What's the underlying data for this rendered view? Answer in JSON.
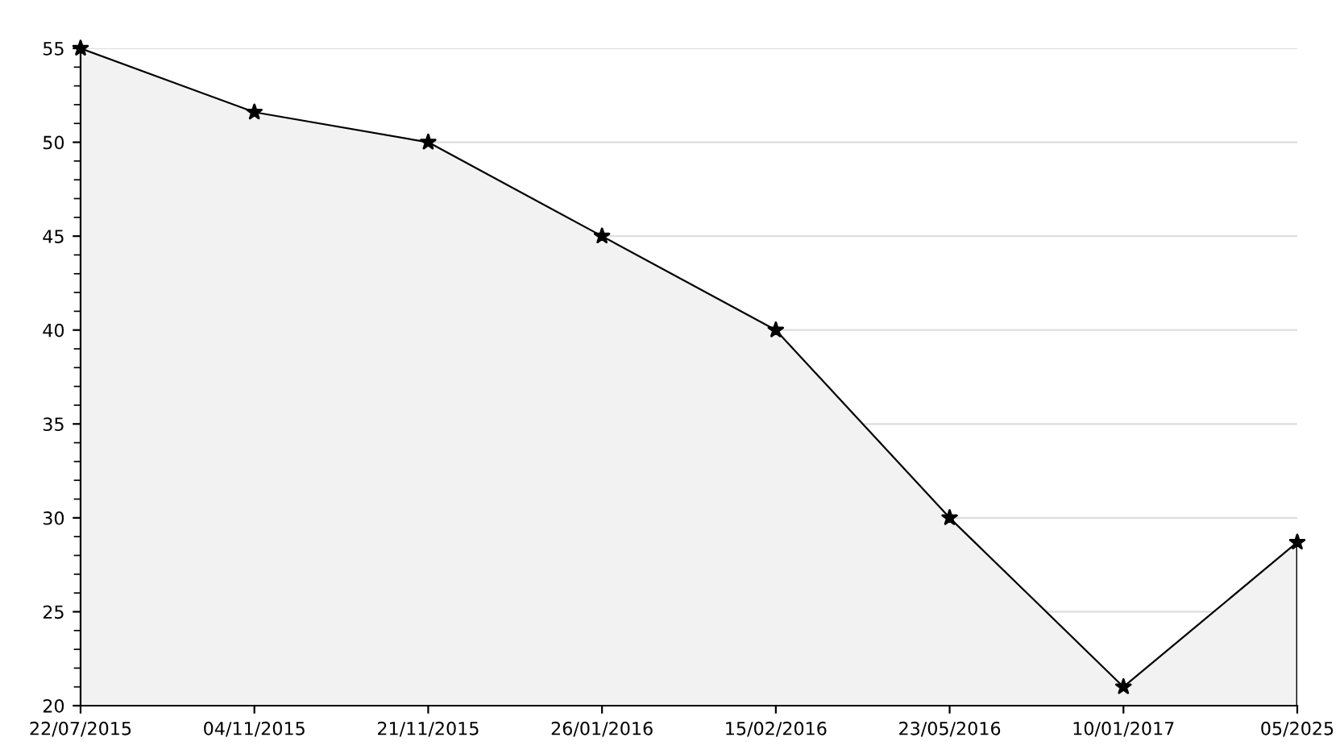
{
  "chart_data": {
    "type": "area",
    "categories": [
      "22/07/2015",
      "04/11/2015",
      "21/11/2015",
      "26/01/2016",
      "15/02/2016",
      "23/05/2016",
      "10/01/2017",
      "05/2025"
    ],
    "series": [
      {
        "color": "#f2f2f2",
        "values": [
          55,
          51.6,
          50,
          45,
          40,
          30,
          21,
          28.7
        ]
      }
    ],
    "ylim": [
      20,
      55
    ],
    "yticks": [
      20,
      25,
      30,
      35,
      40,
      45,
      50,
      55
    ],
    "grid": "y",
    "marker": "star",
    "line_style": "solid",
    "legend": false
  }
}
